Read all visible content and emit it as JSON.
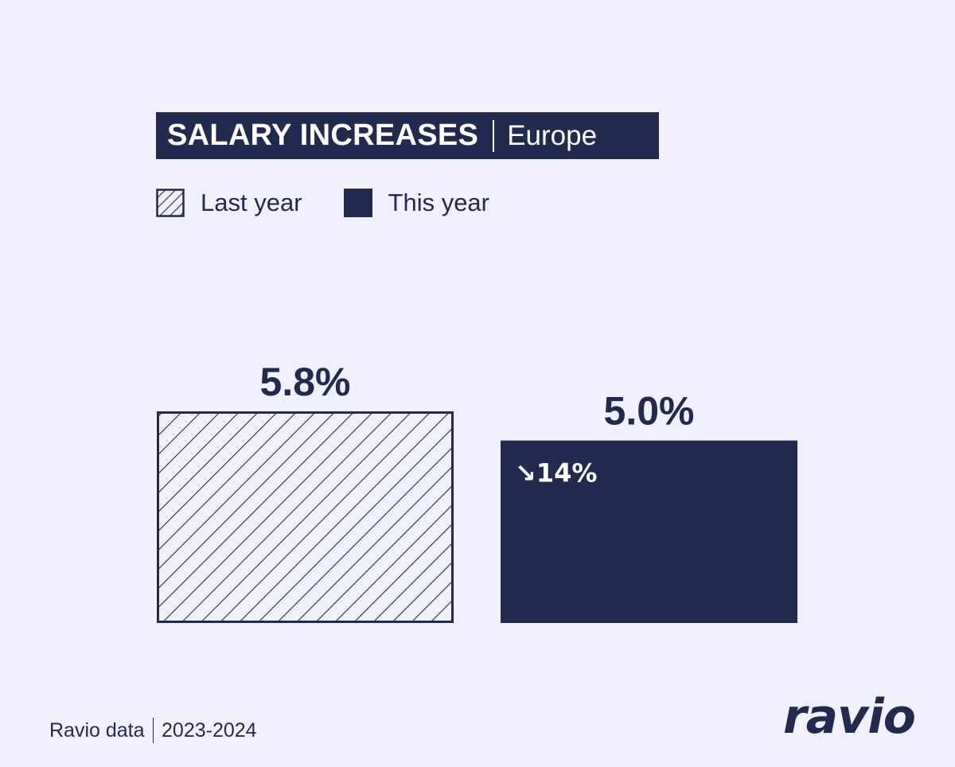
{
  "colors": {
    "background": "#f1f0fd",
    "navy": "#232a4f",
    "white": "#ffffff"
  },
  "footer": {
    "source": "Ravio data",
    "period": "2023-2024"
  },
  "logo": {
    "text": "ravio"
  },
  "chart_data": {
    "type": "bar",
    "title": "SALARY INCREASES",
    "subtitle": "Europe",
    "categories": [
      "Last year",
      "This year"
    ],
    "series": [
      {
        "name": "Last year",
        "pattern": "hatched",
        "value": 5.8,
        "label": "5.8%"
      },
      {
        "name": "This year",
        "pattern": "solid",
        "value": 5.0,
        "label": "5.0%",
        "change": "↘14%"
      }
    ],
    "legend_position": "top-left",
    "grid": false,
    "axes_visible": false
  }
}
